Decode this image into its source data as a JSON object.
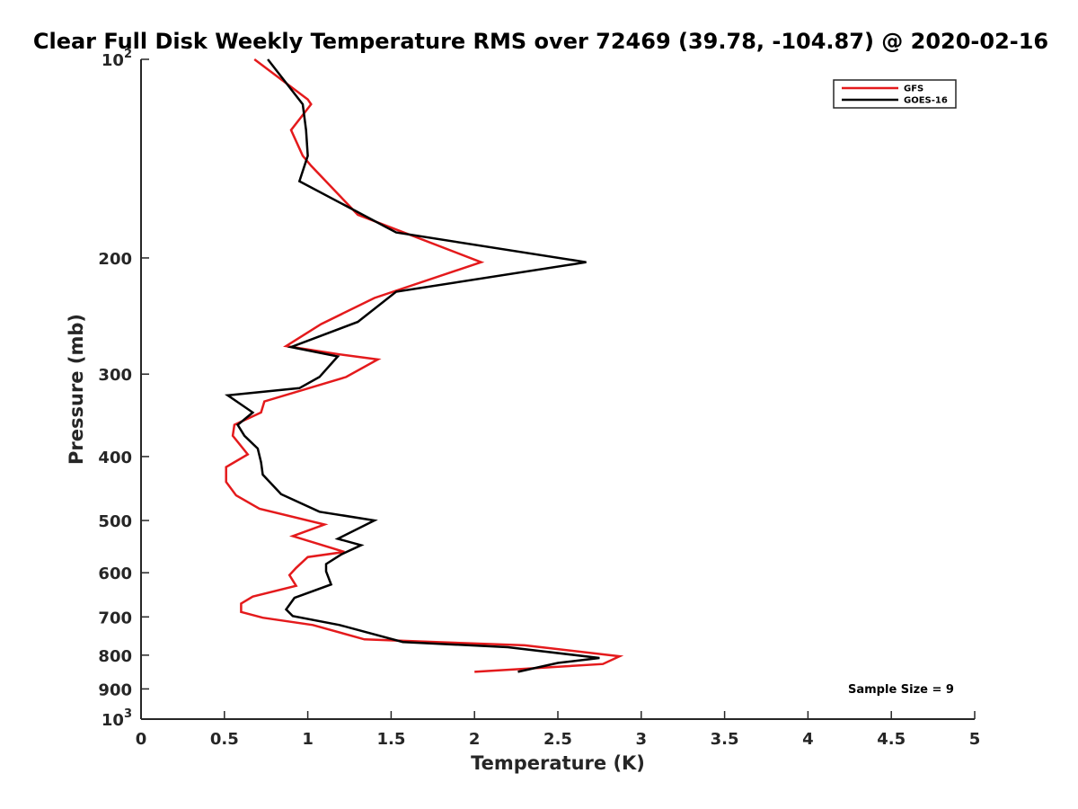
{
  "chart_data": {
    "type": "line",
    "title": "Clear Full Disk Weekly Temperature RMS over 72469 (39.78, -104.87) @ 2020-02-16",
    "xlabel": "Temperature (K)",
    "ylabel": "Pressure (mb)",
    "xlim": [
      0,
      5
    ],
    "ylim": [
      100,
      1000
    ],
    "y_scale": "log",
    "y_reversed": true,
    "grid": false,
    "legend_position": "top-right",
    "xticks": [
      "0",
      "0.5",
      "1",
      "1.5",
      "2",
      "2.5",
      "3",
      "3.5",
      "4",
      "4.5",
      "5"
    ],
    "yticks": [
      {
        "value": 100,
        "base": "10",
        "exp": "2"
      },
      {
        "value": 200,
        "label": "200"
      },
      {
        "value": 300,
        "label": "300"
      },
      {
        "value": 400,
        "label": "400"
      },
      {
        "value": 500,
        "label": "500"
      },
      {
        "value": 600,
        "label": "600"
      },
      {
        "value": 700,
        "label": "700"
      },
      {
        "value": 800,
        "label": "800"
      },
      {
        "value": 900,
        "label": "900"
      },
      {
        "value": 1000,
        "base": "10",
        "exp": "3"
      }
    ],
    "annotation": "Sample Size = 9",
    "series": [
      {
        "name": "GFS",
        "color": "#e41a1c",
        "points": [
          [
            0.68,
            100
          ],
          [
            1.0,
            115
          ],
          [
            1.02,
            117
          ],
          [
            0.9,
            128
          ],
          [
            0.97,
            140
          ],
          [
            1.02,
            145
          ],
          [
            1.3,
            172
          ],
          [
            2.04,
            203
          ],
          [
            1.4,
            230
          ],
          [
            1.08,
            252
          ],
          [
            0.87,
            272
          ],
          [
            1.19,
            280
          ],
          [
            1.42,
            285
          ],
          [
            1.23,
            303
          ],
          [
            0.74,
            330
          ],
          [
            0.72,
            343
          ],
          [
            0.56,
            358
          ],
          [
            0.55,
            372
          ],
          [
            0.64,
            397
          ],
          [
            0.51,
            415
          ],
          [
            0.51,
            437
          ],
          [
            0.57,
            458
          ],
          [
            0.71,
            480
          ],
          [
            1.1,
            507
          ],
          [
            0.91,
            528
          ],
          [
            1.22,
            558
          ],
          [
            1.0,
            568
          ],
          [
            0.93,
            590
          ],
          [
            0.89,
            605
          ],
          [
            0.93,
            628
          ],
          [
            0.67,
            652
          ],
          [
            0.6,
            668
          ],
          [
            0.6,
            688
          ],
          [
            0.73,
            702
          ],
          [
            1.03,
            720
          ],
          [
            1.34,
            757
          ],
          [
            2.3,
            773
          ],
          [
            2.87,
            803
          ],
          [
            2.77,
            825
          ],
          [
            2.0,
            848
          ]
        ]
      },
      {
        "name": "GOES-16",
        "color": "#000000",
        "points": [
          [
            0.76,
            100
          ],
          [
            0.97,
            117
          ],
          [
            0.99,
            128
          ],
          [
            1.0,
            140
          ],
          [
            0.95,
            153
          ],
          [
            1.53,
            183
          ],
          [
            2.67,
            203
          ],
          [
            1.53,
            225
          ],
          [
            1.3,
            250
          ],
          [
            0.9,
            273
          ],
          [
            1.18,
            282
          ],
          [
            1.07,
            303
          ],
          [
            0.95,
            315
          ],
          [
            0.52,
            323
          ],
          [
            0.67,
            343
          ],
          [
            0.58,
            358
          ],
          [
            0.62,
            372
          ],
          [
            0.7,
            389
          ],
          [
            0.72,
            408
          ],
          [
            0.73,
            426
          ],
          [
            0.84,
            456
          ],
          [
            1.07,
            485
          ],
          [
            1.4,
            500
          ],
          [
            1.18,
            533
          ],
          [
            1.32,
            545
          ],
          [
            1.2,
            563
          ],
          [
            1.11,
            582
          ],
          [
            1.11,
            597
          ],
          [
            1.14,
            625
          ],
          [
            0.92,
            655
          ],
          [
            0.87,
            682
          ],
          [
            0.91,
            698
          ],
          [
            1.19,
            720
          ],
          [
            1.57,
            764
          ],
          [
            2.2,
            778
          ],
          [
            2.75,
            808
          ],
          [
            2.5,
            822
          ],
          [
            2.26,
            848
          ]
        ]
      }
    ]
  }
}
